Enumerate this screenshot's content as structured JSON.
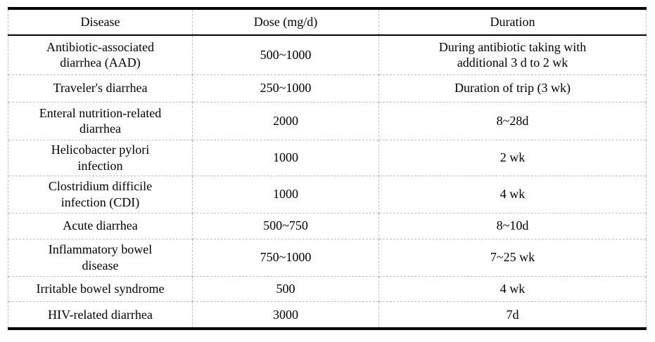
{
  "table": {
    "columns": [
      "Disease",
      "Dose (mg/d)",
      "Duration"
    ],
    "rows": [
      {
        "disease": "Antibiotic-associated\ndiarrhea (AAD)",
        "dose": "500~1000",
        "duration": "During antibiotic taking with\nadditional 3 d to 2 wk"
      },
      {
        "disease": "Traveler's diarrhea",
        "dose": "250~1000",
        "duration": "Duration of trip (3 wk)"
      },
      {
        "disease": "Enteral nutrition-related\ndiarrhea",
        "dose": "2000",
        "duration": "8~28d"
      },
      {
        "disease": "Helicobacter pylori\ninfection",
        "dose": "1000",
        "duration": "2 wk"
      },
      {
        "disease": "Clostridium difficile\ninfection (CDI)",
        "dose": "1000",
        "duration": "4 wk"
      },
      {
        "disease": "Acute diarrhea",
        "dose": "500~750",
        "duration": "8~10d"
      },
      {
        "disease": "Inflammatory bowel\ndisease",
        "dose": "750~1000",
        "duration": "7~25 wk"
      },
      {
        "disease": "Irritable bowel syndrome",
        "dose": "500",
        "duration": "4 wk"
      },
      {
        "disease": "HIV-related diarrhea",
        "dose": "3000",
        "duration": "7d"
      }
    ]
  },
  "colors": {
    "text": "#000000",
    "thick_rule": "#000000",
    "header_rule": "#000000",
    "grid_dashed": "#c2c2c2",
    "background": "#ffffff"
  }
}
